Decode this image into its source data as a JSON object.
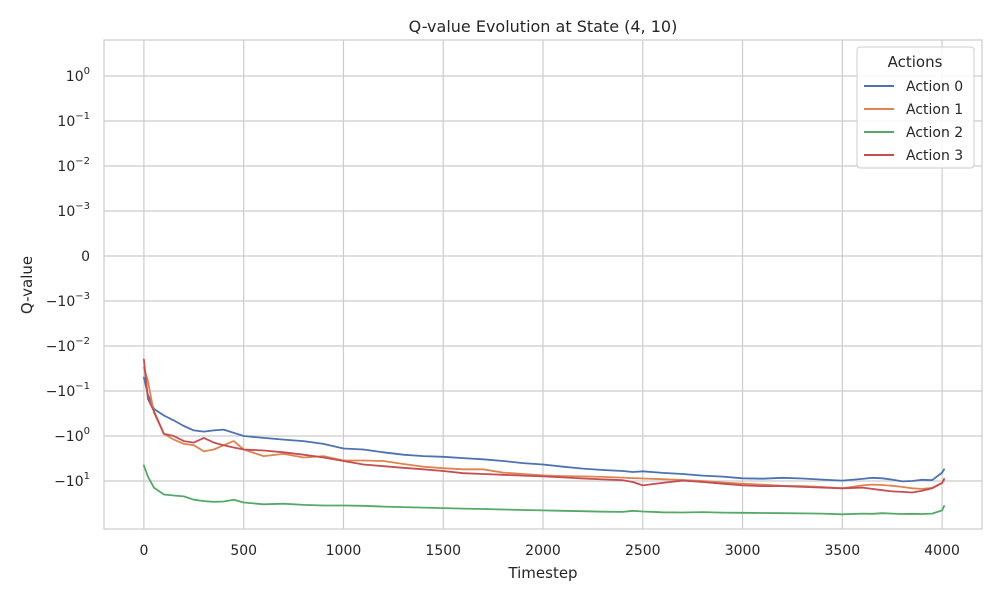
{
  "chart_data": {
    "type": "line",
    "title": "Q-value Evolution at State (4, 10)",
    "xlabel": "Timestep",
    "ylabel": "Q-value",
    "xlim": [
      -200,
      4200
    ],
    "x_ticks": [
      0,
      500,
      1000,
      1500,
      2000,
      2500,
      3000,
      3500,
      4000
    ],
    "y_scale": "symlog",
    "y_ticks": [
      {
        "value": 1,
        "base": "10",
        "exp": "0"
      },
      {
        "value": 0.1,
        "base": "10",
        "exp": "−1"
      },
      {
        "value": 0.01,
        "base": "10",
        "exp": "−2"
      },
      {
        "value": 0.001,
        "base": "10",
        "exp": "−3"
      },
      {
        "value": 0,
        "base": "0",
        "exp": ""
      },
      {
        "value": -0.001,
        "base": "−10",
        "exp": "−3"
      },
      {
        "value": -0.01,
        "base": "−10",
        "exp": "−2"
      },
      {
        "value": -0.1,
        "base": "−10",
        "exp": "−1"
      },
      {
        "value": -1,
        "base": "−10",
        "exp": "0"
      },
      {
        "value": -10,
        "base": "−10",
        "exp": "1"
      }
    ],
    "grid": true,
    "legend": {
      "title": "Actions",
      "placement": "top-right"
    },
    "x": [
      0,
      20,
      50,
      100,
      150,
      200,
      250,
      300,
      350,
      400,
      450,
      500,
      600,
      700,
      800,
      900,
      1000,
      1100,
      1200,
      1300,
      1400,
      1500,
      1600,
      1700,
      1800,
      1900,
      2000,
      2100,
      2200,
      2300,
      2400,
      2450,
      2500,
      2600,
      2700,
      2800,
      2900,
      3000,
      3100,
      3200,
      3300,
      3400,
      3500,
      3600,
      3650,
      3700,
      3750,
      3800,
      3850,
      3900,
      3950,
      4000,
      4010
    ],
    "series": [
      {
        "name": "Action 0",
        "color": "#4c72b0",
        "values": [
          -0.05,
          -0.12,
          -0.25,
          -0.35,
          -0.45,
          -0.6,
          -0.75,
          -0.8,
          -0.75,
          -0.72,
          -0.85,
          -1.0,
          -1.1,
          -1.2,
          -1.3,
          -1.5,
          -1.9,
          -2.0,
          -2.3,
          -2.6,
          -2.8,
          -2.9,
          -3.1,
          -3.3,
          -3.6,
          -4.0,
          -4.3,
          -4.8,
          -5.3,
          -5.7,
          -6.0,
          -6.3,
          -6.1,
          -6.6,
          -7.0,
          -7.6,
          -8.0,
          -8.7,
          -8.9,
          -8.5,
          -8.8,
          -9.3,
          -9.8,
          -9.0,
          -8.5,
          -8.7,
          -9.3,
          -10.2,
          -10.0,
          -9.4,
          -9.6,
          -6.5,
          -5.5
        ]
      },
      {
        "name": "Action 1",
        "color": "#dd8452",
        "values": [
          -0.03,
          -0.06,
          -0.3,
          -0.9,
          -1.2,
          -1.5,
          -1.6,
          -2.2,
          -2.0,
          -1.6,
          -1.3,
          -2.0,
          -2.8,
          -2.5,
          -3.0,
          -2.8,
          -3.5,
          -3.5,
          -3.6,
          -4.2,
          -4.8,
          -5.2,
          -5.5,
          -5.5,
          -6.5,
          -7.0,
          -7.5,
          -7.8,
          -7.9,
          -8.1,
          -8.4,
          -8.6,
          -8.8,
          -9.1,
          -9.5,
          -10.0,
          -10.8,
          -11.5,
          -12.0,
          -12.8,
          -13.0,
          -13.6,
          -14.5,
          -12.5,
          -12.0,
          -12.3,
          -12.8,
          -13.5,
          -14.5,
          -15.0,
          -14.2,
          -11.0,
          -9.5
        ]
      },
      {
        "name": "Action 2",
        "color": "#55a868",
        "values": [
          -4.5,
          -8.0,
          -14.0,
          -20.0,
          -21.0,
          -22.0,
          -26.0,
          -28.0,
          -29.0,
          -28.5,
          -26.0,
          -30.0,
          -33.0,
          -32.0,
          -34.0,
          -35.0,
          -35.0,
          -35.5,
          -37.0,
          -38.0,
          -39.0,
          -40.0,
          -41.0,
          -42.0,
          -43.0,
          -44.0,
          -45.0,
          -46.0,
          -47.0,
          -48.0,
          -48.5,
          -46.0,
          -47.5,
          -49.5,
          -50.0,
          -49.0,
          -50.5,
          -51.0,
          -51.5,
          -52.0,
          -52.5,
          -53.0,
          -55.0,
          -53.0,
          -53.5,
          -52.0,
          -53.0,
          -54.0,
          -53.5,
          -54.0,
          -53.0,
          -45.0,
          -36.0
        ]
      },
      {
        "name": "Action 3",
        "color": "#c44e52",
        "values": [
          -0.02,
          -0.15,
          -0.28,
          -0.9,
          -1.0,
          -1.3,
          -1.4,
          -1.1,
          -1.4,
          -1.6,
          -1.8,
          -2.0,
          -2.1,
          -2.3,
          -2.6,
          -3.0,
          -3.6,
          -4.3,
          -4.7,
          -5.1,
          -5.5,
          -6.0,
          -6.7,
          -7.0,
          -7.3,
          -7.6,
          -7.9,
          -8.3,
          -8.8,
          -9.2,
          -9.6,
          -10.5,
          -12.5,
          -11.0,
          -9.8,
          -10.5,
          -11.5,
          -12.5,
          -13.0,
          -13.0,
          -13.5,
          -14.0,
          -14.5,
          -14.0,
          -15.0,
          -16.0,
          -17.0,
          -17.5,
          -18.0,
          -16.5,
          -14.5,
          -11.0,
          -9.0
        ]
      }
    ]
  }
}
